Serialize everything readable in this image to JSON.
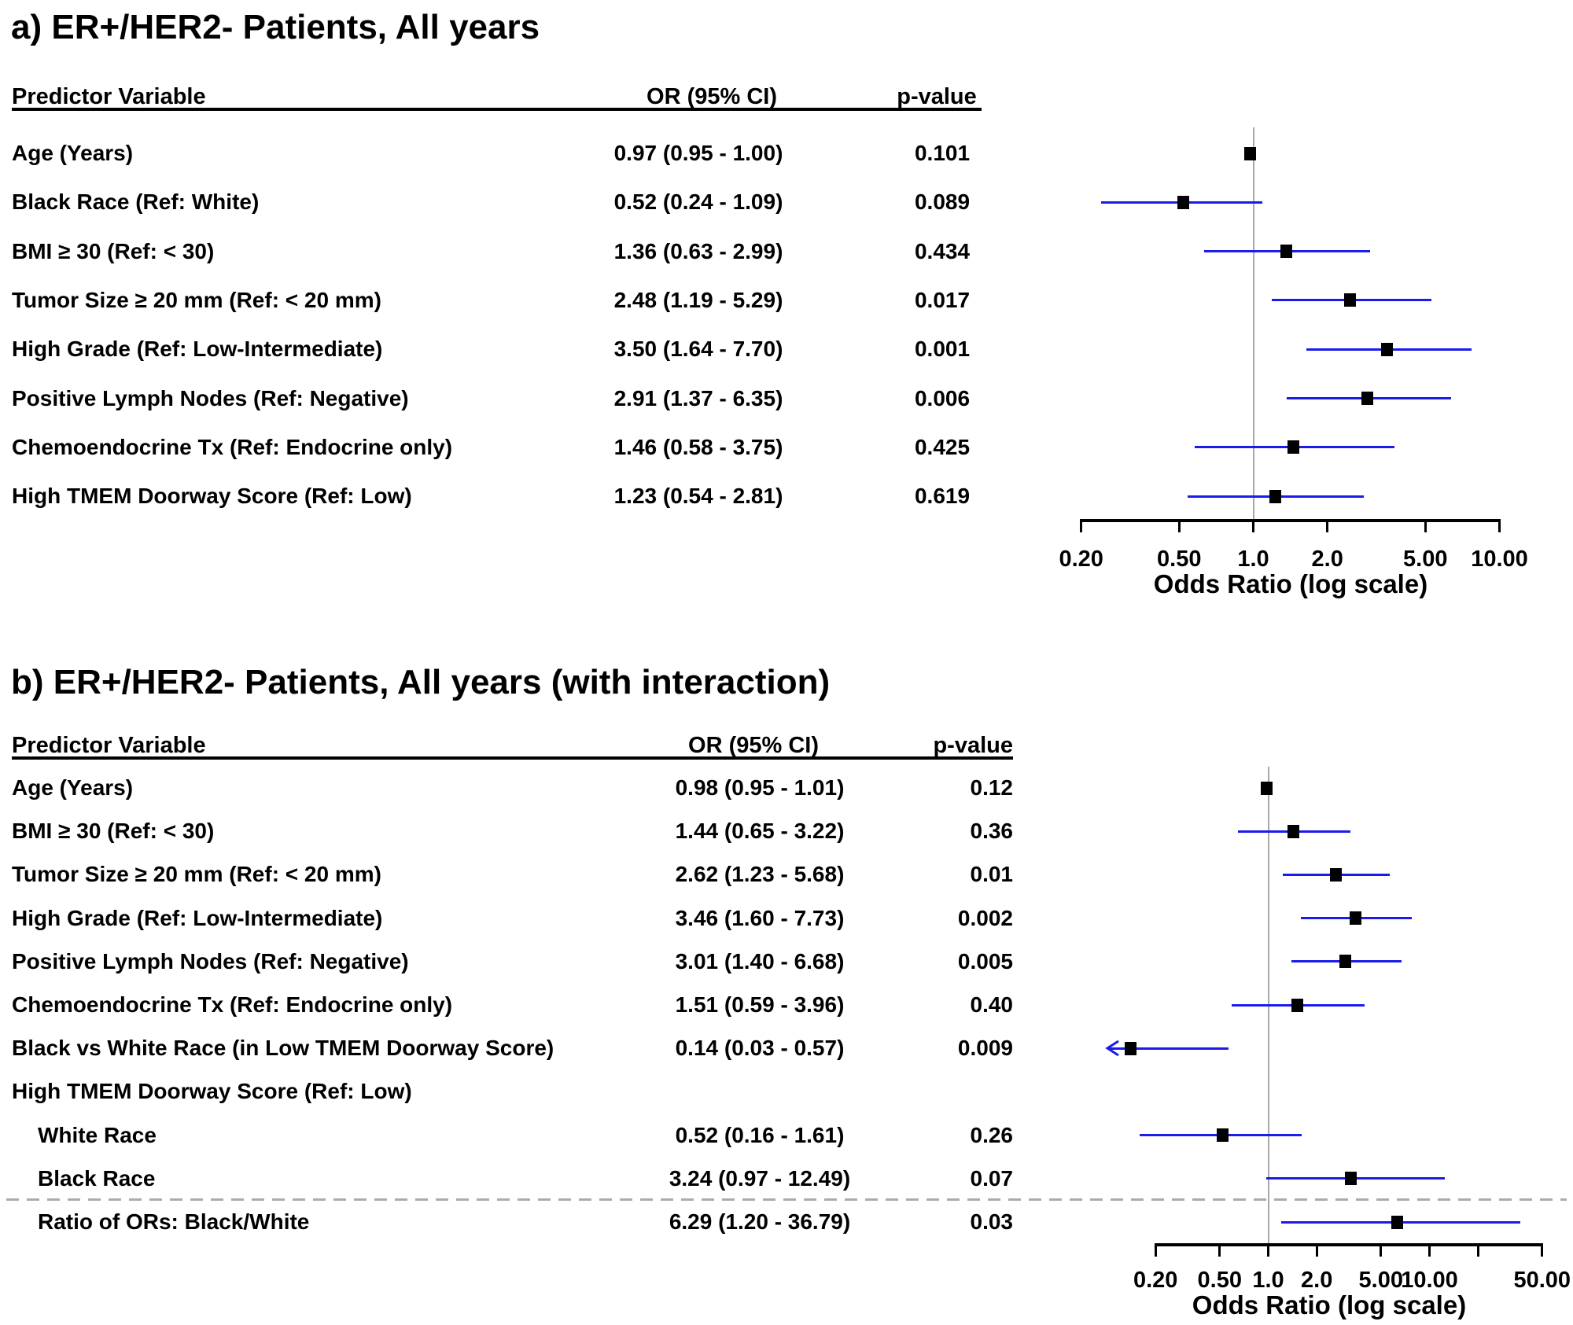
{
  "colors": {
    "ci_line": "#1b1bec",
    "marker": "#000000",
    "reference_line": "#a8a8a8",
    "separator_dashed": "#ababab"
  },
  "chart_data": [
    {
      "id": "a",
      "type": "forest",
      "title": "a)  ER+/HER2- Patients, All years",
      "col_headers": {
        "predictor": "Predictor Variable",
        "or": "OR (95% CI)",
        "p": "p-value"
      },
      "axis": {
        "label": "Odds Ratio (log scale)",
        "scale": "log",
        "min": 0.2,
        "max": 10,
        "reference_value": 1.0,
        "ticks": [
          {
            "v": 0.2,
            "t": "0.20"
          },
          {
            "v": 0.5,
            "t": "0.50"
          },
          {
            "v": 1,
            "t": "1.0"
          },
          {
            "v": 2,
            "t": "2.0"
          },
          {
            "v": 5,
            "t": "5.00"
          },
          {
            "v": 10,
            "t": "10.00"
          }
        ]
      },
      "rows": [
        {
          "label": "Age (Years)",
          "or": 0.97,
          "lo": 0.95,
          "hi": 1.0,
          "or_ci": "0.97 (0.95 - 1.00)",
          "p": "0.101"
        },
        {
          "label": "Black Race (Ref: White)",
          "or": 0.52,
          "lo": 0.24,
          "hi": 1.09,
          "or_ci": "0.52 (0.24 - 1.09)",
          "p": "0.089"
        },
        {
          "label": "BMI ≥ 30 (Ref: < 30)",
          "or": 1.36,
          "lo": 0.63,
          "hi": 2.99,
          "or_ci": "1.36 (0.63 - 2.99)",
          "p": "0.434"
        },
        {
          "label": "Tumor Size ≥ 20 mm (Ref: < 20 mm)",
          "or": 2.48,
          "lo": 1.19,
          "hi": 5.29,
          "or_ci": "2.48 (1.19 - 5.29)",
          "p": "0.017"
        },
        {
          "label": "High Grade (Ref: Low-Intermediate)",
          "or": 3.5,
          "lo": 1.64,
          "hi": 7.7,
          "or_ci": "3.50 (1.64 - 7.70)",
          "p": "0.001"
        },
        {
          "label": "Positive Lymph Nodes (Ref: Negative)",
          "or": 2.91,
          "lo": 1.37,
          "hi": 6.35,
          "or_ci": "2.91 (1.37 - 6.35)",
          "p": "0.006"
        },
        {
          "label": "Chemoendocrine Tx (Ref: Endocrine only)",
          "or": 1.46,
          "lo": 0.58,
          "hi": 3.75,
          "or_ci": "1.46 (0.58 - 3.75)",
          "p": "0.425"
        },
        {
          "label": "High TMEM Doorway Score (Ref: Low)",
          "or": 1.23,
          "lo": 0.54,
          "hi": 2.81,
          "or_ci": "1.23 (0.54 - 2.81)",
          "p": "0.619"
        }
      ]
    },
    {
      "id": "b",
      "type": "forest",
      "title": "b)  ER+/HER2- Patients, All years (with interaction)",
      "col_headers": {
        "predictor": "Predictor Variable",
        "or": "OR (95% CI)",
        "p": "p-value"
      },
      "axis": {
        "label": "Odds Ratio (log scale)",
        "scale": "log",
        "min": 0.2,
        "max": 50,
        "reference_value": 1.0,
        "ticks": [
          {
            "v": 0.2,
            "t": "0.20"
          },
          {
            "v": 0.5,
            "t": "0.50"
          },
          {
            "v": 1,
            "t": "1.0"
          },
          {
            "v": 2,
            "t": "2.0"
          },
          {
            "v": 5,
            "t": "5.00"
          },
          {
            "v": 10,
            "t": "10.00"
          },
          {
            "v": 20,
            "t": ""
          },
          {
            "v": 50,
            "t": "50.00"
          }
        ]
      },
      "rows": [
        {
          "label": "Age (Years)",
          "or": 0.98,
          "lo": 0.95,
          "hi": 1.01,
          "or_ci": "0.98 (0.95 - 1.01)",
          "p": "0.12"
        },
        {
          "label": "BMI ≥ 30 (Ref: < 30)",
          "or": 1.44,
          "lo": 0.65,
          "hi": 3.22,
          "or_ci": "1.44 (0.65 - 3.22)",
          "p": "0.36"
        },
        {
          "label": "Tumor Size ≥ 20 mm (Ref: < 20 mm)",
          "or": 2.62,
          "lo": 1.23,
          "hi": 5.68,
          "or_ci": "2.62 (1.23 - 5.68)",
          "p": "0.01"
        },
        {
          "label": "High Grade (Ref: Low-Intermediate)",
          "or": 3.46,
          "lo": 1.6,
          "hi": 7.73,
          "or_ci": "3.46 (1.60 - 7.73)",
          "p": "0.002"
        },
        {
          "label": "Positive Lymph Nodes (Ref: Negative)",
          "or": 3.01,
          "lo": 1.4,
          "hi": 6.68,
          "or_ci": "3.01 (1.40 - 6.68)",
          "p": "0.005"
        },
        {
          "label": "Chemoendocrine Tx (Ref: Endocrine only)",
          "or": 1.51,
          "lo": 0.59,
          "hi": 3.96,
          "or_ci": "1.51 (0.59 - 3.96)",
          "p": "0.40"
        },
        {
          "label": "Black vs White Race (in Low TMEM Doorway Score)",
          "or": 0.14,
          "lo": 0.03,
          "hi": 0.57,
          "or_ci": "0.14 (0.03 - 0.57)",
          "p": "0.009",
          "clip_lo": 0.1,
          "arrow_left": true
        },
        {
          "label": "High TMEM Doorway Score (Ref: Low)",
          "subheading": true
        },
        {
          "label": "White Race",
          "indent": 1,
          "or": 0.52,
          "lo": 0.16,
          "hi": 1.61,
          "or_ci": "0.52 (0.16 - 1.61)",
          "p": "0.26"
        },
        {
          "label": "Black Race",
          "indent": 1,
          "or": 3.24,
          "lo": 0.97,
          "hi": 12.49,
          "or_ci": "3.24 (0.97 - 12.49)",
          "p": "0.07"
        },
        {
          "label": "Ratio of ORs: Black/White",
          "indent": 1,
          "or": 6.29,
          "lo": 1.2,
          "hi": 36.79,
          "or_ci": "6.29 (1.20 - 36.79)",
          "p": "0.03"
        }
      ]
    }
  ]
}
